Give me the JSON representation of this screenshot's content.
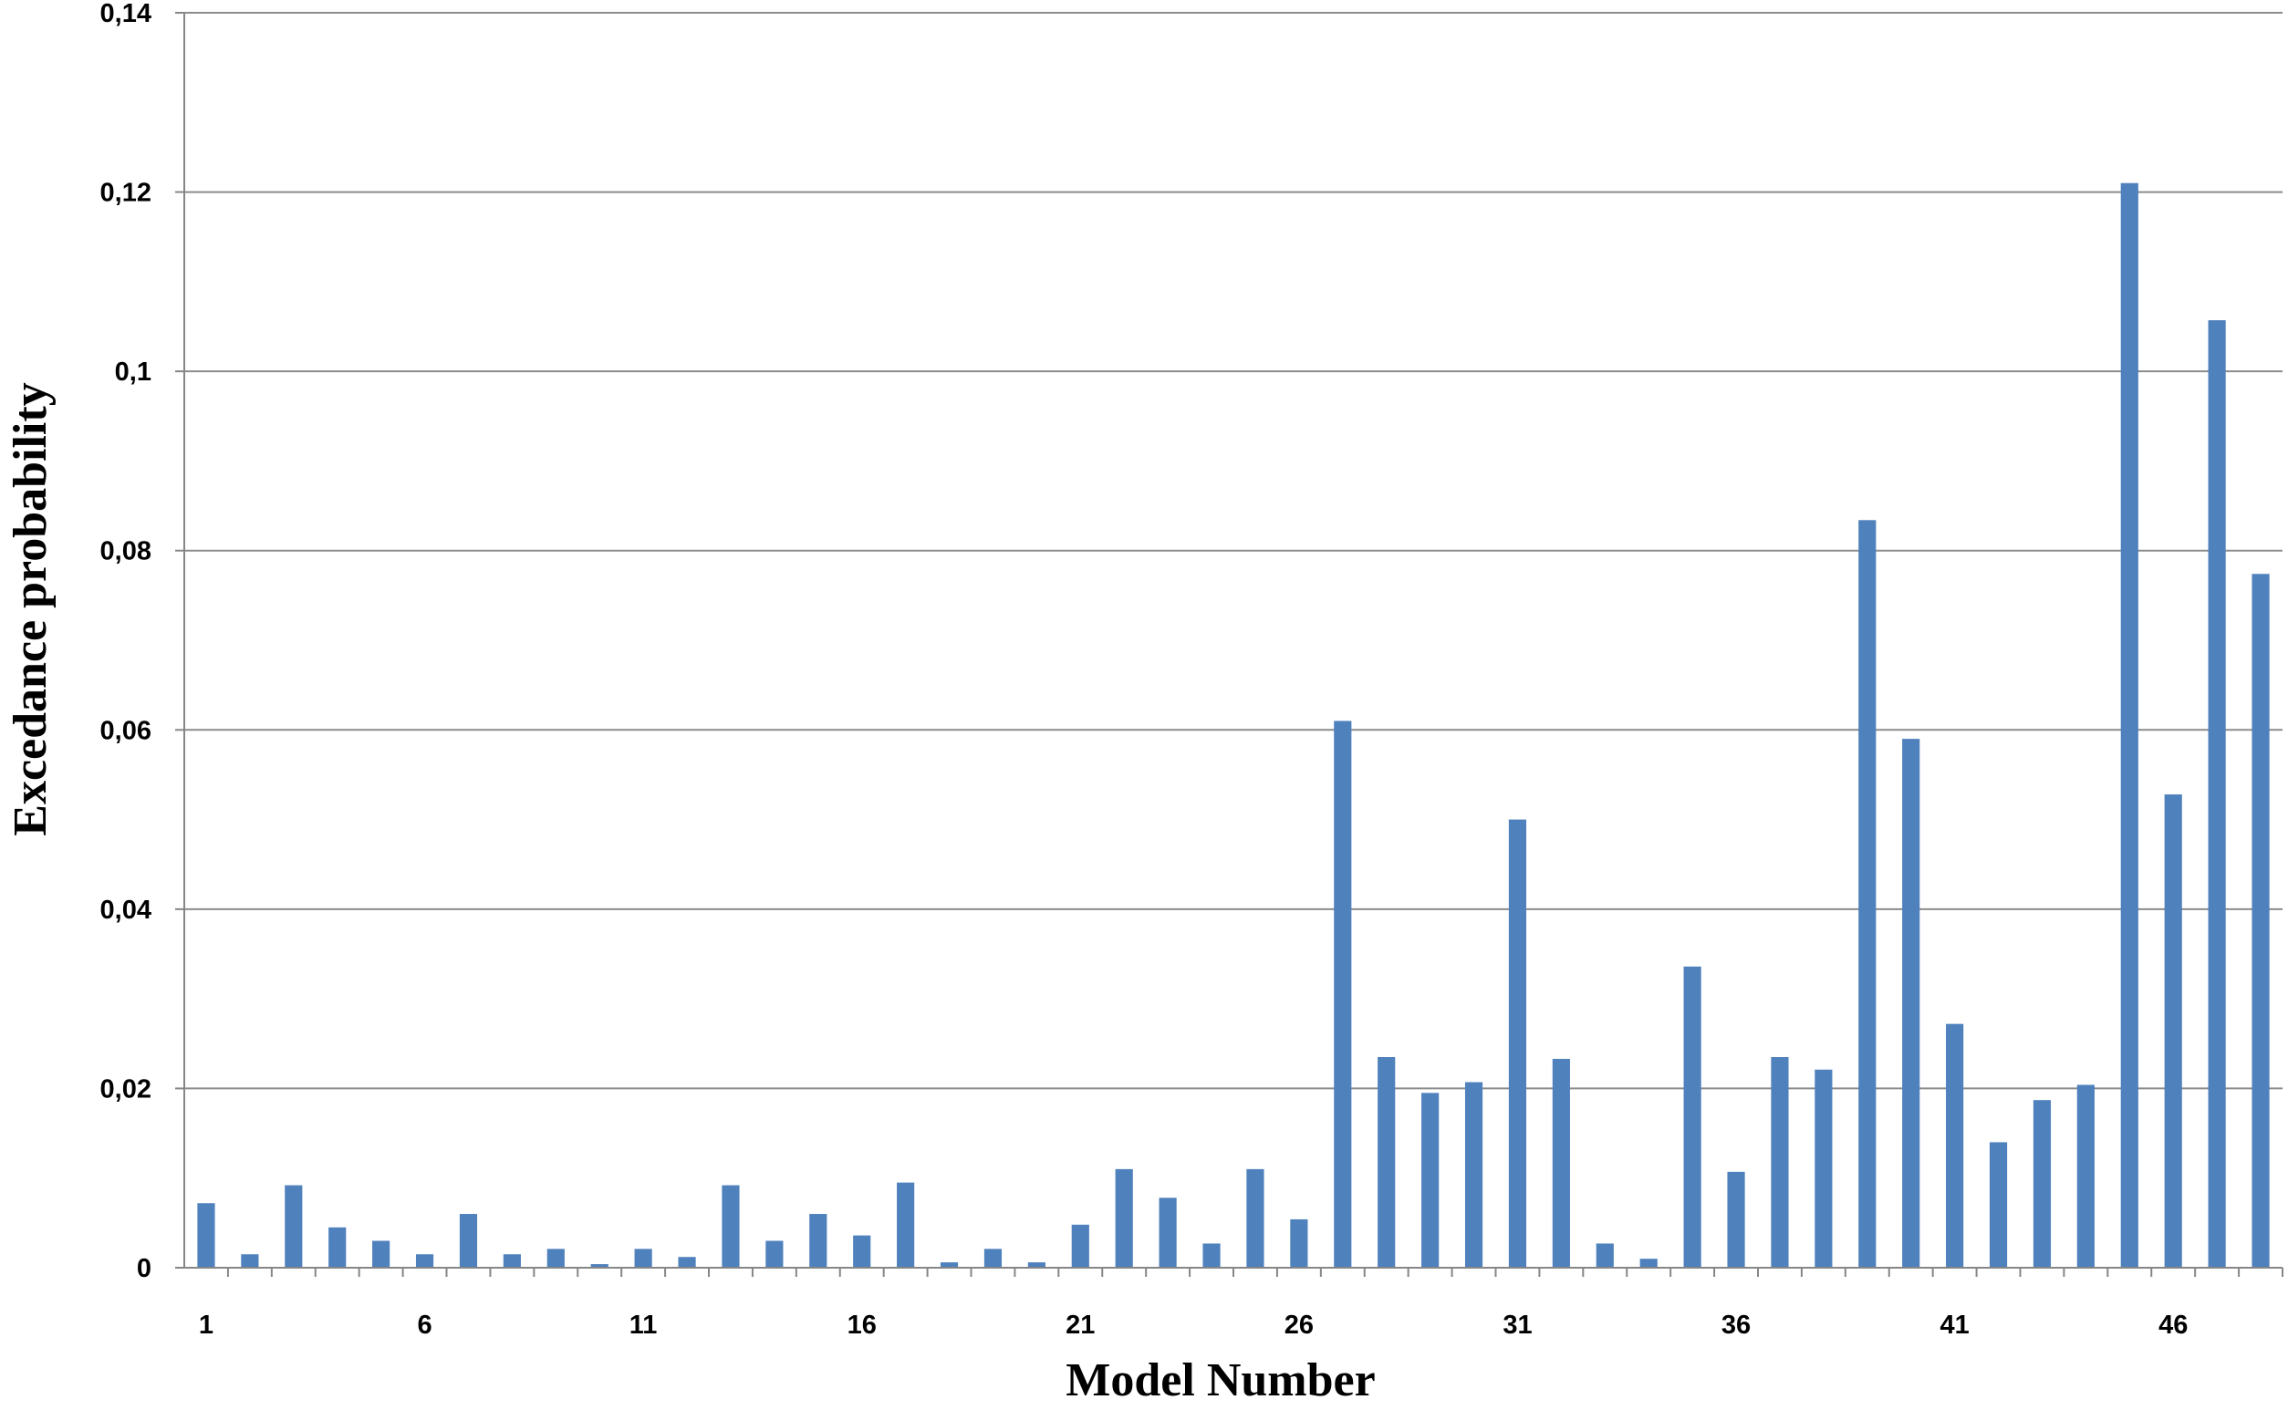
{
  "chart_data": {
    "type": "bar",
    "xlabel": "Model Number",
    "ylabel": "Excedance probability",
    "ylim": [
      0,
      0.14
    ],
    "y_ticks": [
      "0",
      "0,02",
      "0,04",
      "0,06",
      "0,08",
      "0,1",
      "0,12",
      "0,14"
    ],
    "x_tick_labels": [
      "1",
      "6",
      "11",
      "16",
      "21",
      "26",
      "31",
      "36",
      "41",
      "46"
    ],
    "grid": "horizontal",
    "legend": "none",
    "bar_color": "#4F81BD",
    "categories": [
      1,
      2,
      3,
      4,
      5,
      6,
      7,
      8,
      9,
      10,
      11,
      12,
      13,
      14,
      15,
      16,
      17,
      18,
      19,
      20,
      21,
      22,
      23,
      24,
      25,
      26,
      27,
      28,
      29,
      30,
      31,
      32,
      33,
      34,
      35,
      36,
      37,
      38,
      39,
      40,
      41,
      42,
      43,
      44,
      45,
      46,
      47,
      48
    ],
    "values": [
      0.0072,
      0.0015,
      0.0092,
      0.0045,
      0.003,
      0.0015,
      0.006,
      0.0015,
      0.0021,
      0.0004,
      0.0021,
      0.0012,
      0.0092,
      0.003,
      0.006,
      0.0036,
      0.0095,
      0.0006,
      0.0021,
      0.0006,
      0.0048,
      0.011,
      0.0078,
      0.0027,
      0.011,
      0.0054,
      0.061,
      0.0235,
      0.0195,
      0.0207,
      0.05,
      0.0233,
      0.0027,
      0.001,
      0.0336,
      0.0107,
      0.0235,
      0.0221,
      0.0834,
      0.059,
      0.0272,
      0.014,
      0.0187,
      0.0204,
      0.121,
      0.0528,
      0.1057,
      0.0774
    ]
  }
}
